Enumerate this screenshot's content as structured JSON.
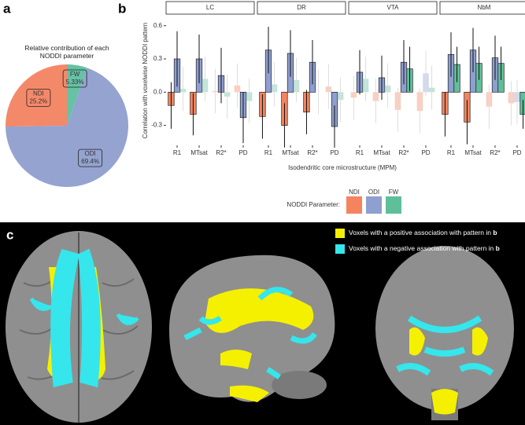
{
  "panel_labels": [
    "a",
    "b",
    "c"
  ],
  "chart_data": [
    {
      "type": "pie",
      "title": "Relative contribution of each NODDI parameter",
      "categories": [
        "NDI",
        "ODI",
        "FW"
      ],
      "values": [
        25.2,
        69.4,
        5.33
      ],
      "value_labels": [
        "25.2%",
        "69.4%",
        "5.33%"
      ],
      "colors": [
        "#f4896a",
        "#95a3d0",
        "#66c2a5"
      ],
      "direction": "counterclockwise"
    },
    {
      "type": "bar",
      "ylabel": "Correlation with voxelwise NODDI pattern",
      "xlabel": "Isodendritic core microstructure (MPM)",
      "categories": [
        "R1",
        "MTsat",
        "R2*",
        "PD"
      ],
      "ylim": [
        -0.48,
        0.69
      ],
      "yticks": [
        {
          "value": 0.6,
          "label": "0.6"
        },
        {
          "value": 0.3,
          "label": "0.3"
        },
        {
          "value": 0,
          "label": "0.0"
        },
        {
          "value": -0.3,
          "label": "-0.3"
        }
      ],
      "grid": false,
      "legend_title": "NODDI Parameter:",
      "legend_position": "bottom",
      "facets": [
        {
          "title": "LC",
          "series": [
            {
              "name": "NDI",
              "color": "#f4845f",
              "values": [
                -0.12,
                -0.2,
                0.01,
                0.06
              ],
              "errors": [
                0.21,
                0.19,
                0.2,
                0.2
              ],
              "significant": [
                true,
                true,
                false,
                false
              ]
            },
            {
              "name": "ODI",
              "color": "#8e9fd0",
              "values": [
                0.3,
                0.3,
                0.15,
                -0.23
              ],
              "errors": [
                0.25,
                0.22,
                0.25,
                0.23
              ],
              "significant": [
                true,
                true,
                true,
                true
              ]
            },
            {
              "name": "FW",
              "color": "#5fbf9a",
              "values": [
                0.03,
                0.12,
                -0.04,
                -0.08
              ],
              "errors": [
                0.2,
                0.2,
                0.2,
                0.2
              ],
              "significant": [
                false,
                false,
                false,
                false
              ]
            }
          ]
        },
        {
          "title": "DR",
          "series": [
            {
              "name": "NDI",
              "color": "#f4845f",
              "values": [
                -0.22,
                -0.3,
                -0.18,
                0.05
              ],
              "errors": [
                0.2,
                0.2,
                0.2,
                0.2
              ],
              "significant": [
                true,
                true,
                true,
                false
              ]
            },
            {
              "name": "ODI",
              "color": "#8e9fd0",
              "values": [
                0.38,
                0.35,
                0.27,
                -0.31
              ],
              "errors": [
                0.21,
                0.21,
                0.2,
                0.19
              ],
              "significant": [
                true,
                true,
                true,
                true
              ]
            },
            {
              "name": "FW",
              "color": "#5fbf9a",
              "values": [
                0.07,
                0.11,
                0.0,
                -0.07
              ],
              "errors": [
                0.2,
                0.2,
                0.2,
                0.2
              ],
              "significant": [
                false,
                false,
                false,
                false
              ]
            }
          ]
        },
        {
          "title": "VTA",
          "series": [
            {
              "name": "NDI",
              "color": "#f4845f",
              "values": [
                -0.05,
                -0.08,
                -0.16,
                -0.17
              ],
              "errors": [
                0.2,
                0.2,
                0.2,
                0.2
              ],
              "significant": [
                false,
                false,
                false,
                false
              ]
            },
            {
              "name": "ODI",
              "color": "#8e9fd0",
              "values": [
                0.18,
                0.13,
                0.27,
                0.17
              ],
              "errors": [
                0.2,
                0.2,
                0.2,
                0.2
              ],
              "significant": [
                true,
                true,
                true,
                false
              ]
            },
            {
              "name": "FW",
              "color": "#5fbf9a",
              "values": [
                0.12,
                0.06,
                0.21,
                0.04
              ],
              "errors": [
                0.2,
                0.2,
                0.2,
                0.2
              ],
              "significant": [
                false,
                false,
                true,
                false
              ]
            }
          ]
        },
        {
          "title": "NbM",
          "series": [
            {
              "name": "NDI",
              "color": "#f4845f",
              "values": [
                -0.2,
                -0.27,
                -0.13,
                -0.1
              ],
              "errors": [
                0.2,
                0.2,
                0.2,
                0.2
              ],
              "significant": [
                true,
                true,
                false,
                false
              ]
            },
            {
              "name": "ODI",
              "color": "#8e9fd0",
              "values": [
                0.34,
                0.38,
                0.31,
                -0.09
              ],
              "errors": [
                0.2,
                0.2,
                0.2,
                0.2
              ],
              "significant": [
                true,
                true,
                true,
                false
              ]
            },
            {
              "name": "FW",
              "color": "#5fbf9a",
              "values": [
                0.25,
                0.26,
                0.26,
                -0.2
              ],
              "errors": [
                0.16,
                0.15,
                0.15,
                0.13
              ],
              "significant": [
                true,
                true,
                true,
                true
              ]
            }
          ]
        }
      ]
    }
  ],
  "brain_legend": [
    {
      "text": "Voxels with a positive association with pattern in ",
      "ref": "b",
      "color": "#f5f000"
    },
    {
      "text": "Voxels with a negative association with pattern in ",
      "ref": "b",
      "color": "#35e6ec"
    }
  ]
}
